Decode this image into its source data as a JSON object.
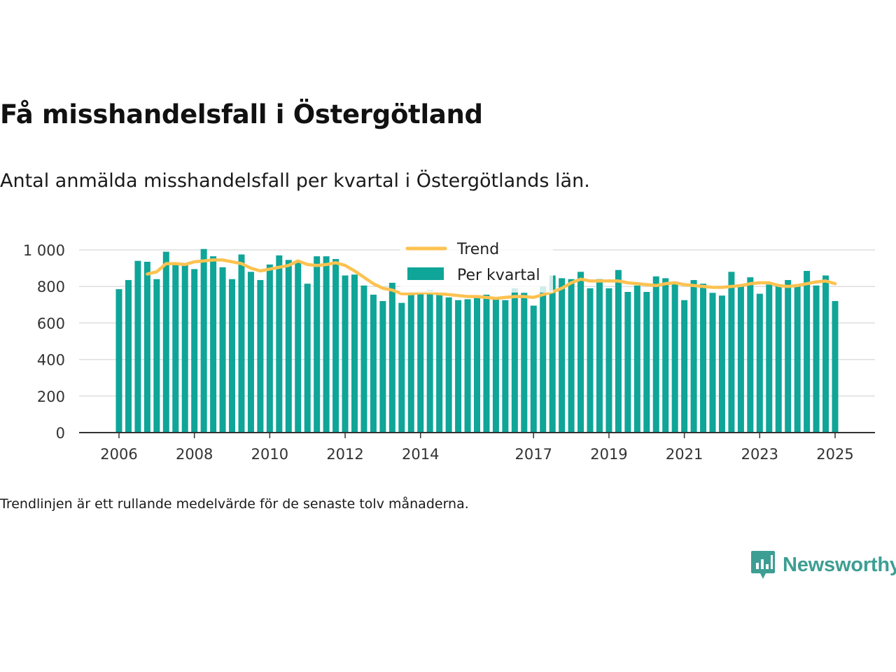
{
  "title": "Få misshandelsfall i Östergötland",
  "subtitle": "Antal anmälda misshandelsfall per kvartal i Östergötlands län.",
  "note": "Trendlinjen är ett rullande medelvärde för de senaste tolv månaderna.",
  "brand": {
    "name": "Newsworthy",
    "icon": "newsworthy-chart-icon"
  },
  "colors": {
    "bars": "#0fa598",
    "trend": "#fdc250",
    "grid": "#dddddd",
    "axis": "#333333"
  },
  "chart_data": {
    "type": "bar",
    "ylim": [
      0,
      1000
    ],
    "yticks": [
      0,
      200,
      400,
      600,
      800,
      1000
    ],
    "ytick_labels": [
      "0",
      "200",
      "400",
      "600",
      "800",
      "1 000"
    ],
    "xticks": [
      "2006",
      "2008",
      "2010",
      "2012",
      "2014",
      "2017",
      "2019",
      "2021",
      "2023",
      "2025"
    ],
    "grid": true,
    "legend": {
      "placement": "top-center",
      "entries": [
        "Trend",
        "Per kvartal"
      ]
    },
    "x": [
      "2006-Q1",
      "2006-Q2",
      "2006-Q3",
      "2006-Q4",
      "2007-Q1",
      "2007-Q2",
      "2007-Q3",
      "2007-Q4",
      "2008-Q1",
      "2008-Q2",
      "2008-Q3",
      "2008-Q4",
      "2009-Q1",
      "2009-Q2",
      "2009-Q3",
      "2009-Q4",
      "2010-Q1",
      "2010-Q2",
      "2010-Q3",
      "2010-Q4",
      "2011-Q1",
      "2011-Q2",
      "2011-Q3",
      "2011-Q4",
      "2012-Q1",
      "2012-Q2",
      "2012-Q3",
      "2012-Q4",
      "2013-Q1",
      "2013-Q2",
      "2013-Q3",
      "2013-Q4",
      "2014-Q1",
      "2014-Q2",
      "2014-Q3",
      "2014-Q4",
      "2015-Q1",
      "2015-Q2",
      "2015-Q3",
      "2015-Q4",
      "2016-Q1",
      "2016-Q2",
      "2016-Q3",
      "2016-Q4",
      "2017-Q1",
      "2017-Q2",
      "2017-Q3",
      "2017-Q4",
      "2018-Q1",
      "2018-Q2",
      "2018-Q3",
      "2018-Q4",
      "2019-Q1",
      "2019-Q2",
      "2019-Q3",
      "2019-Q4",
      "2020-Q1",
      "2020-Q2",
      "2020-Q3",
      "2020-Q4",
      "2021-Q1",
      "2021-Q2",
      "2021-Q3",
      "2021-Q4",
      "2022-Q1",
      "2022-Q2",
      "2022-Q3",
      "2022-Q4",
      "2023-Q1",
      "2023-Q2",
      "2023-Q3",
      "2023-Q4",
      "2024-Q1",
      "2024-Q2",
      "2024-Q3",
      "2024-Q4",
      "2025-Q1"
    ],
    "series": [
      {
        "name": "Per kvartal",
        "type": "bar",
        "values": [
          785,
          835,
          940,
          935,
          840,
          990,
          930,
          920,
          895,
          1005,
          965,
          905,
          840,
          975,
          880,
          835,
          920,
          970,
          945,
          935,
          815,
          965,
          965,
          950,
          860,
          865,
          805,
          755,
          720,
          820,
          710,
          765,
          765,
          780,
          760,
          740,
          725,
          730,
          740,
          755,
          730,
          725,
          790,
          765,
          695,
          800,
          860,
          845,
          840,
          880,
          790,
          840,
          790,
          890,
          770,
          805,
          770,
          855,
          845,
          820,
          725,
          835,
          815,
          765,
          750,
          880,
          800,
          850,
          760,
          810,
          810,
          835,
          810,
          885,
          805,
          860,
          720
        ]
      },
      {
        "name": "Trend",
        "type": "line",
        "values": [
          null,
          null,
          null,
          868,
          880,
          925,
          925,
          920,
          935,
          940,
          945,
          945,
          935,
          925,
          900,
          885,
          895,
          905,
          915,
          940,
          920,
          915,
          920,
          930,
          915,
          885,
          850,
          815,
          790,
          780,
          760,
          760,
          765,
          765,
          760,
          755,
          750,
          745,
          745,
          740,
          735,
          740,
          745,
          745,
          740,
          755,
          770,
          790,
          820,
          840,
          830,
          830,
          830,
          830,
          820,
          815,
          810,
          805,
          815,
          820,
          810,
          805,
          800,
          795,
          795,
          800,
          805,
          815,
          820,
          820,
          805,
          800,
          805,
          815,
          825,
          830,
          815
        ]
      }
    ]
  }
}
